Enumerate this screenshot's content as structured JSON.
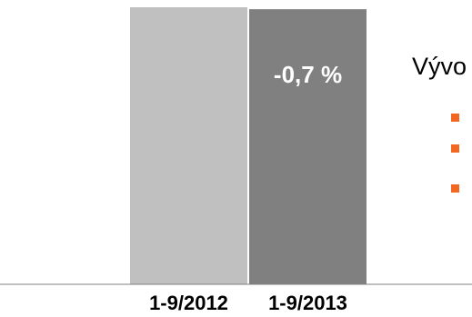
{
  "chart_data": {
    "type": "bar",
    "categories": [
      "1-9/2012",
      "1-9/2013"
    ],
    "values": [
      100,
      99.3
    ],
    "data_labels": [
      "",
      "-0,7 %"
    ],
    "ylim": [
      0,
      100
    ],
    "grid": false,
    "bar_colors": [
      "#c0c0c0",
      "#808080"
    ]
  },
  "legend": {
    "title": "Vývo",
    "bullet_color": "#f26722",
    "bullet_count": 3
  }
}
